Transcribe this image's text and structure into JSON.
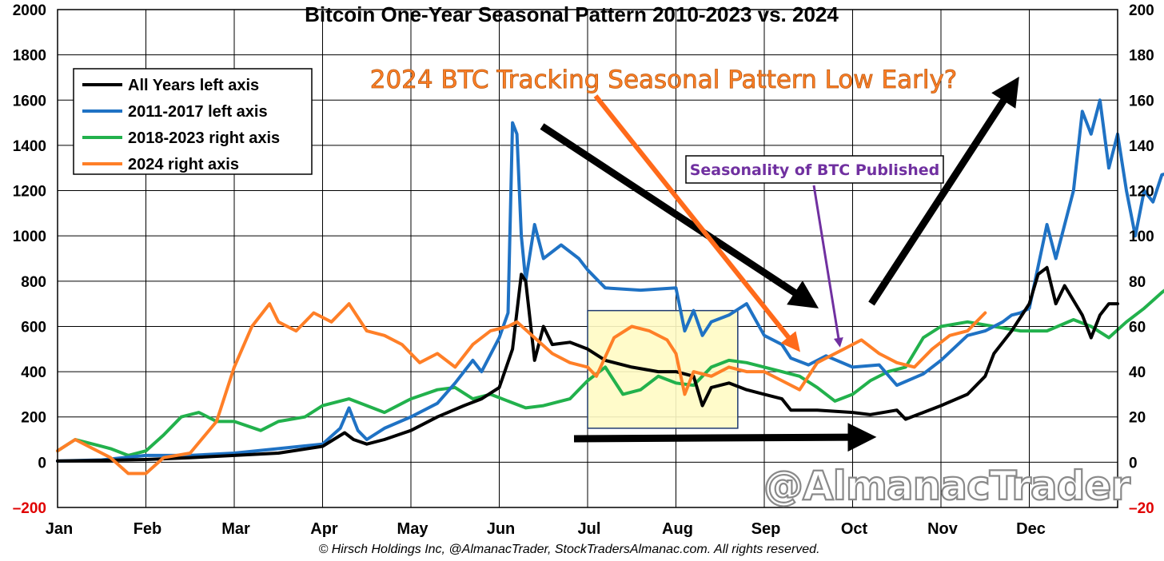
{
  "chart_data": {
    "type": "line",
    "title": "Bitcoin One-Year Seasonal Pattern 2010-2023 vs. 2024",
    "footer": "© Hirsch Holdings Inc, @AlmanacTrader, StockTradersAlmanac.com. All rights reserved.",
    "watermark": "@AlmanacTrader",
    "y_left": {
      "ylim": [
        -200,
        2000
      ],
      "ticks": [
        "–200",
        "0",
        "200",
        "400",
        "600",
        "800",
        "1000",
        "1200",
        "1400",
        "1600",
        "1800",
        "2000"
      ]
    },
    "y_right": {
      "ylim": [
        -20,
        200
      ],
      "ticks": [
        "–20",
        "0",
        "20",
        "40",
        "60",
        "80",
        "100",
        "120",
        "140",
        "160",
        "180",
        "200"
      ]
    },
    "months": [
      "Jan",
      "Feb",
      "Mar",
      "Apr",
      "May",
      "Jun",
      "Jul",
      "Aug",
      "Sep",
      "Oct",
      "Nov",
      "Dec"
    ],
    "legend": [
      {
        "label": "All Years left axis",
        "color": "#000000"
      },
      {
        "label": "2011-2017 left axis",
        "color": "#1f72c4"
      },
      {
        "label": "2018-2023 right axis",
        "color": "#22b14c"
      },
      {
        "label": "2024 right axis",
        "color": "#ff7f27"
      }
    ],
    "annotations": {
      "headline": "2024 BTC Tracking Seasonal Pattern Low Early?",
      "published": "Seasonality of BTC Published"
    },
    "highlight_box": {
      "x_start_month": 6.0,
      "x_end_month": 7.7,
      "y_bottom": 150,
      "y_top": 670
    },
    "series": [
      {
        "name": "All Years left axis",
        "axis": "left",
        "color": "#000000",
        "points": [
          [
            0,
            5
          ],
          [
            0.5,
            8
          ],
          [
            1,
            12
          ],
          [
            1.5,
            20
          ],
          [
            2,
            30
          ],
          [
            2.5,
            40
          ],
          [
            3,
            70
          ],
          [
            3.25,
            130
          ],
          [
            3.35,
            100
          ],
          [
            3.5,
            80
          ],
          [
            3.7,
            100
          ],
          [
            4,
            140
          ],
          [
            4.3,
            200
          ],
          [
            4.6,
            250
          ],
          [
            4.8,
            280
          ],
          [
            5,
            330
          ],
          [
            5.15,
            500
          ],
          [
            5.25,
            830
          ],
          [
            5.3,
            800
          ],
          [
            5.4,
            450
          ],
          [
            5.5,
            600
          ],
          [
            5.6,
            520
          ],
          [
            5.8,
            530
          ],
          [
            6,
            500
          ],
          [
            6.2,
            450
          ],
          [
            6.5,
            420
          ],
          [
            6.8,
            400
          ],
          [
            7,
            400
          ],
          [
            7.2,
            380
          ],
          [
            7.3,
            250
          ],
          [
            7.4,
            330
          ],
          [
            7.6,
            350
          ],
          [
            7.8,
            320
          ],
          [
            8,
            300
          ],
          [
            8.2,
            280
          ],
          [
            8.3,
            230
          ],
          [
            8.6,
            230
          ],
          [
            9,
            220
          ],
          [
            9.2,
            210
          ],
          [
            9.5,
            230
          ],
          [
            9.6,
            190
          ],
          [
            9.8,
            220
          ],
          [
            10,
            250
          ],
          [
            10.3,
            300
          ],
          [
            10.5,
            380
          ],
          [
            10.6,
            480
          ],
          [
            10.8,
            580
          ],
          [
            11,
            700
          ],
          [
            11.1,
            830
          ],
          [
            11.2,
            860
          ],
          [
            11.3,
            700
          ],
          [
            11.4,
            780
          ],
          [
            11.6,
            650
          ],
          [
            11.7,
            550
          ],
          [
            11.8,
            650
          ],
          [
            11.9,
            700
          ],
          [
            12,
            700
          ]
        ]
      },
      {
        "name": "2011-2017 left axis",
        "axis": "left",
        "color": "#1f72c4",
        "points": [
          [
            0,
            5
          ],
          [
            0.5,
            10
          ],
          [
            1,
            30
          ],
          [
            1.5,
            30
          ],
          [
            2,
            40
          ],
          [
            2.5,
            60
          ],
          [
            3,
            80
          ],
          [
            3.2,
            150
          ],
          [
            3.3,
            240
          ],
          [
            3.4,
            140
          ],
          [
            3.5,
            100
          ],
          [
            3.7,
            150
          ],
          [
            4,
            200
          ],
          [
            4.3,
            260
          ],
          [
            4.5,
            350
          ],
          [
            4.7,
            450
          ],
          [
            4.8,
            400
          ],
          [
            5,
            550
          ],
          [
            5.1,
            660
          ],
          [
            5.15,
            1500
          ],
          [
            5.2,
            1450
          ],
          [
            5.25,
            1000
          ],
          [
            5.3,
            800
          ],
          [
            5.4,
            1050
          ],
          [
            5.5,
            900
          ],
          [
            5.7,
            960
          ],
          [
            5.9,
            900
          ],
          [
            6,
            850
          ],
          [
            6.2,
            770
          ],
          [
            6.6,
            760
          ],
          [
            7,
            770
          ],
          [
            7.1,
            580
          ],
          [
            7.2,
            670
          ],
          [
            7.3,
            560
          ],
          [
            7.4,
            620
          ],
          [
            7.6,
            650
          ],
          [
            7.8,
            700
          ],
          [
            8,
            560
          ],
          [
            8.2,
            520
          ],
          [
            8.3,
            460
          ],
          [
            8.5,
            430
          ],
          [
            8.7,
            470
          ],
          [
            9,
            420
          ],
          [
            9.3,
            430
          ],
          [
            9.5,
            340
          ],
          [
            9.8,
            390
          ],
          [
            10,
            450
          ],
          [
            10.3,
            560
          ],
          [
            10.5,
            580
          ],
          [
            10.7,
            620
          ],
          [
            10.8,
            650
          ],
          [
            10.9,
            660
          ],
          [
            11,
            680
          ],
          [
            11.2,
            1050
          ],
          [
            11.3,
            900
          ],
          [
            11.5,
            1200
          ],
          [
            11.6,
            1550
          ],
          [
            11.7,
            1450
          ],
          [
            11.8,
            1600
          ],
          [
            11.9,
            1300
          ],
          [
            12,
            1450
          ],
          [
            12.1,
            1200
          ],
          [
            12.2,
            1000
          ],
          [
            12.3,
            1200
          ],
          [
            12.4,
            1150
          ],
          [
            12.5,
            1270
          ],
          [
            12.6,
            1280
          ]
        ]
      },
      {
        "name": "2018-2023 right axis",
        "axis": "right",
        "color": "#22b14c",
        "points": [
          [
            0,
            5
          ],
          [
            0.2,
            10
          ],
          [
            0.4,
            8
          ],
          [
            0.6,
            6
          ],
          [
            0.8,
            3
          ],
          [
            1,
            5
          ],
          [
            1.2,
            12
          ],
          [
            1.4,
            20
          ],
          [
            1.6,
            22
          ],
          [
            1.8,
            18
          ],
          [
            2,
            18
          ],
          [
            2.3,
            14
          ],
          [
            2.5,
            18
          ],
          [
            2.8,
            20
          ],
          [
            3,
            25
          ],
          [
            3.3,
            28
          ],
          [
            3.5,
            25
          ],
          [
            3.7,
            22
          ],
          [
            4,
            28
          ],
          [
            4.3,
            32
          ],
          [
            4.5,
            33
          ],
          [
            4.7,
            28
          ],
          [
            4.9,
            30
          ],
          [
            5.1,
            27
          ],
          [
            5.3,
            24
          ],
          [
            5.5,
            25
          ],
          [
            5.8,
            28
          ],
          [
            6,
            36
          ],
          [
            6.2,
            42
          ],
          [
            6.4,
            30
          ],
          [
            6.6,
            32
          ],
          [
            6.8,
            38
          ],
          [
            7,
            35
          ],
          [
            7.2,
            34
          ],
          [
            7.4,
            42
          ],
          [
            7.6,
            45
          ],
          [
            7.8,
            44
          ],
          [
            8,
            42
          ],
          [
            8.2,
            40
          ],
          [
            8.4,
            38
          ],
          [
            8.6,
            33
          ],
          [
            8.8,
            27
          ],
          [
            9,
            30
          ],
          [
            9.2,
            36
          ],
          [
            9.4,
            40
          ],
          [
            9.6,
            42
          ],
          [
            9.8,
            55
          ],
          [
            10,
            60
          ],
          [
            10.3,
            62
          ],
          [
            10.6,
            60
          ],
          [
            10.9,
            58
          ],
          [
            11.2,
            58
          ],
          [
            11.5,
            63
          ],
          [
            11.7,
            60
          ],
          [
            11.9,
            55
          ],
          [
            12.1,
            62
          ],
          [
            12.3,
            68
          ],
          [
            12.5,
            75
          ],
          [
            12.6,
            78
          ]
        ]
      },
      {
        "name": "2024 right axis",
        "axis": "right",
        "color": "#ff7f27",
        "points": [
          [
            0,
            5
          ],
          [
            0.2,
            10
          ],
          [
            0.4,
            6
          ],
          [
            0.6,
            2
          ],
          [
            0.8,
            -5
          ],
          [
            1,
            -5
          ],
          [
            1.2,
            2
          ],
          [
            1.5,
            4
          ],
          [
            1.8,
            18
          ],
          [
            2.0,
            42
          ],
          [
            2.2,
            60
          ],
          [
            2.4,
            70
          ],
          [
            2.5,
            62
          ],
          [
            2.7,
            58
          ],
          [
            2.9,
            66
          ],
          [
            3.1,
            62
          ],
          [
            3.3,
            70
          ],
          [
            3.5,
            58
          ],
          [
            3.7,
            56
          ],
          [
            3.9,
            52
          ],
          [
            4.1,
            44
          ],
          [
            4.3,
            48
          ],
          [
            4.5,
            42
          ],
          [
            4.7,
            52
          ],
          [
            4.9,
            58
          ],
          [
            5.1,
            60
          ],
          [
            5.2,
            62
          ],
          [
            5.4,
            55
          ],
          [
            5.6,
            48
          ],
          [
            5.8,
            44
          ],
          [
            6,
            42
          ],
          [
            6.1,
            38
          ],
          [
            6.3,
            55
          ],
          [
            6.5,
            60
          ],
          [
            6.7,
            58
          ],
          [
            6.9,
            54
          ],
          [
            7.0,
            48
          ],
          [
            7.1,
            30
          ],
          [
            7.2,
            40
          ],
          [
            7.4,
            38
          ],
          [
            7.6,
            42
          ],
          [
            7.8,
            40
          ],
          [
            8.0,
            40
          ],
          [
            8.2,
            36
          ],
          [
            8.4,
            32
          ],
          [
            8.6,
            44
          ],
          [
            8.7,
            46
          ],
          [
            8.9,
            50
          ],
          [
            9.1,
            54
          ],
          [
            9.3,
            48
          ],
          [
            9.5,
            44
          ],
          [
            9.7,
            42
          ],
          [
            9.9,
            50
          ],
          [
            10.1,
            56
          ],
          [
            10.3,
            58
          ],
          [
            10.4,
            62
          ],
          [
            10.5,
            66
          ]
        ]
      }
    ]
  }
}
